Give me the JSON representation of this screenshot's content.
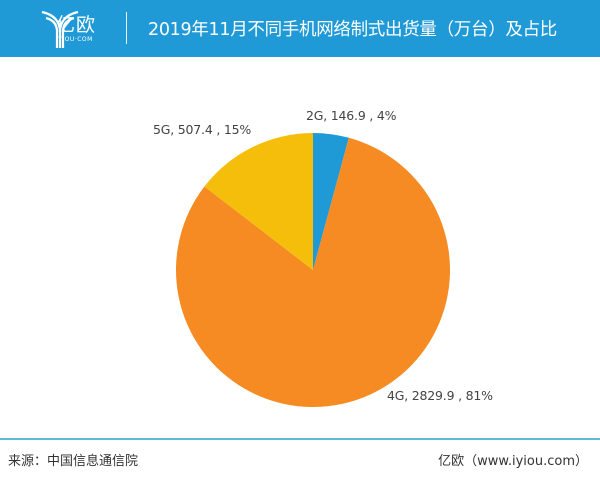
{
  "header": {
    "logo_cn": "亿欧",
    "logo_en": "IYIOU·COM",
    "title": "2019年11月不同手机网络制式出货量（万台）及占比",
    "background": "#1f9ad6"
  },
  "footer": {
    "source": "来源：中国信息通信院",
    "site": "亿欧（www.iyiou.com）"
  },
  "chart_data": {
    "type": "pie",
    "title": "2019年11月不同手机网络制式出货量（万台）及占比",
    "unit": "万台",
    "categories": [
      "2G",
      "4G",
      "5G"
    ],
    "values": [
      146.9,
      2829.9,
      507.4
    ],
    "percentages": [
      4,
      81,
      15
    ],
    "colors": [
      "#1f9ad6",
      "#f58b22",
      "#f5be0a"
    ],
    "labels": [
      "2G, 146.9 , 4%",
      "4G, 2829.9 , 81%",
      "5G, 507.4 , 15%"
    ],
    "start_angle": "12 o'clock, clockwise"
  }
}
